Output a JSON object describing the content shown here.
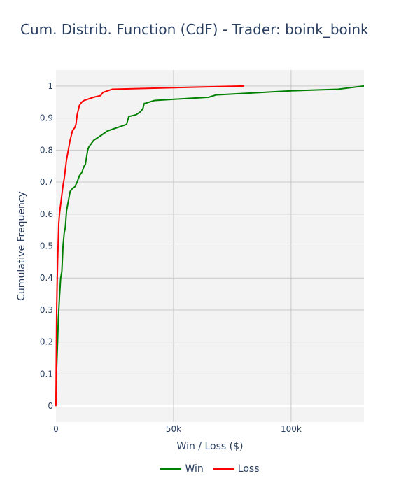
{
  "chart_data": {
    "type": "line",
    "title": "Cum. Distrib. Function (CdF) - Trader: boink_boink",
    "xlabel": "Win / Loss ($)",
    "ylabel": "Cumulative Frequency",
    "xlim": [
      0,
      131000
    ],
    "ylim": [
      -0.05,
      1.05
    ],
    "x_ticks": [
      {
        "value": 0,
        "label": "0"
      },
      {
        "value": 50000,
        "label": "50k"
      },
      {
        "value": 100000,
        "label": "100k"
      }
    ],
    "y_ticks": [
      {
        "value": 0,
        "label": "0"
      },
      {
        "value": 0.1,
        "label": "0.1"
      },
      {
        "value": 0.2,
        "label": "0.2"
      },
      {
        "value": 0.3,
        "label": "0.3"
      },
      {
        "value": 0.4,
        "label": "0.4"
      },
      {
        "value": 0.5,
        "label": "0.5"
      },
      {
        "value": 0.6,
        "label": "0.6"
      },
      {
        "value": 0.7,
        "label": "0.7"
      },
      {
        "value": 0.8,
        "label": "0.8"
      },
      {
        "value": 0.9,
        "label": "0.9"
      },
      {
        "value": 1,
        "label": "1"
      }
    ],
    "grid": true,
    "legend_position": "bottom-center",
    "series": [
      {
        "name": "Win",
        "color": "#008000",
        "x": [
          0,
          300,
          700,
          1000,
          1500,
          2000,
          2500,
          3000,
          3500,
          4000,
          4500,
          5000,
          5500,
          6000,
          7000,
          8000,
          9000,
          10000,
          10500,
          11000,
          12000,
          12500,
          13500,
          14000,
          15000,
          16000,
          18000,
          19000,
          22000,
          26000,
          30000,
          31000,
          34000,
          36000,
          37000,
          37500,
          42000,
          65000,
          68000,
          100000,
          120000,
          131000
        ],
        "y": [
          0,
          0.12,
          0.2,
          0.27,
          0.34,
          0.4,
          0.42,
          0.5,
          0.54,
          0.56,
          0.61,
          0.63,
          0.65,
          0.67,
          0.68,
          0.685,
          0.7,
          0.72,
          0.725,
          0.73,
          0.75,
          0.755,
          0.8,
          0.81,
          0.82,
          0.83,
          0.84,
          0.845,
          0.86,
          0.87,
          0.88,
          0.905,
          0.91,
          0.92,
          0.93,
          0.945,
          0.955,
          0.965,
          0.972,
          0.985,
          0.99,
          1.0
        ]
      },
      {
        "name": "Loss",
        "color": "#ff0000",
        "x": [
          0,
          100,
          200,
          300,
          500,
          700,
          1000,
          1200,
          1500,
          2000,
          2500,
          3000,
          3500,
          4000,
          4500,
          5000,
          5500,
          6000,
          7000,
          8000,
          8500,
          9000,
          10000,
          11000,
          12000,
          14000,
          16000,
          19000,
          20000,
          22000,
          24000,
          80000
        ],
        "y": [
          0,
          0.1,
          0.2,
          0.3,
          0.38,
          0.45,
          0.52,
          0.57,
          0.6,
          0.63,
          0.66,
          0.69,
          0.71,
          0.74,
          0.77,
          0.79,
          0.81,
          0.83,
          0.86,
          0.87,
          0.88,
          0.91,
          0.94,
          0.95,
          0.955,
          0.96,
          0.965,
          0.97,
          0.98,
          0.985,
          0.99,
          1.0
        ]
      }
    ]
  }
}
